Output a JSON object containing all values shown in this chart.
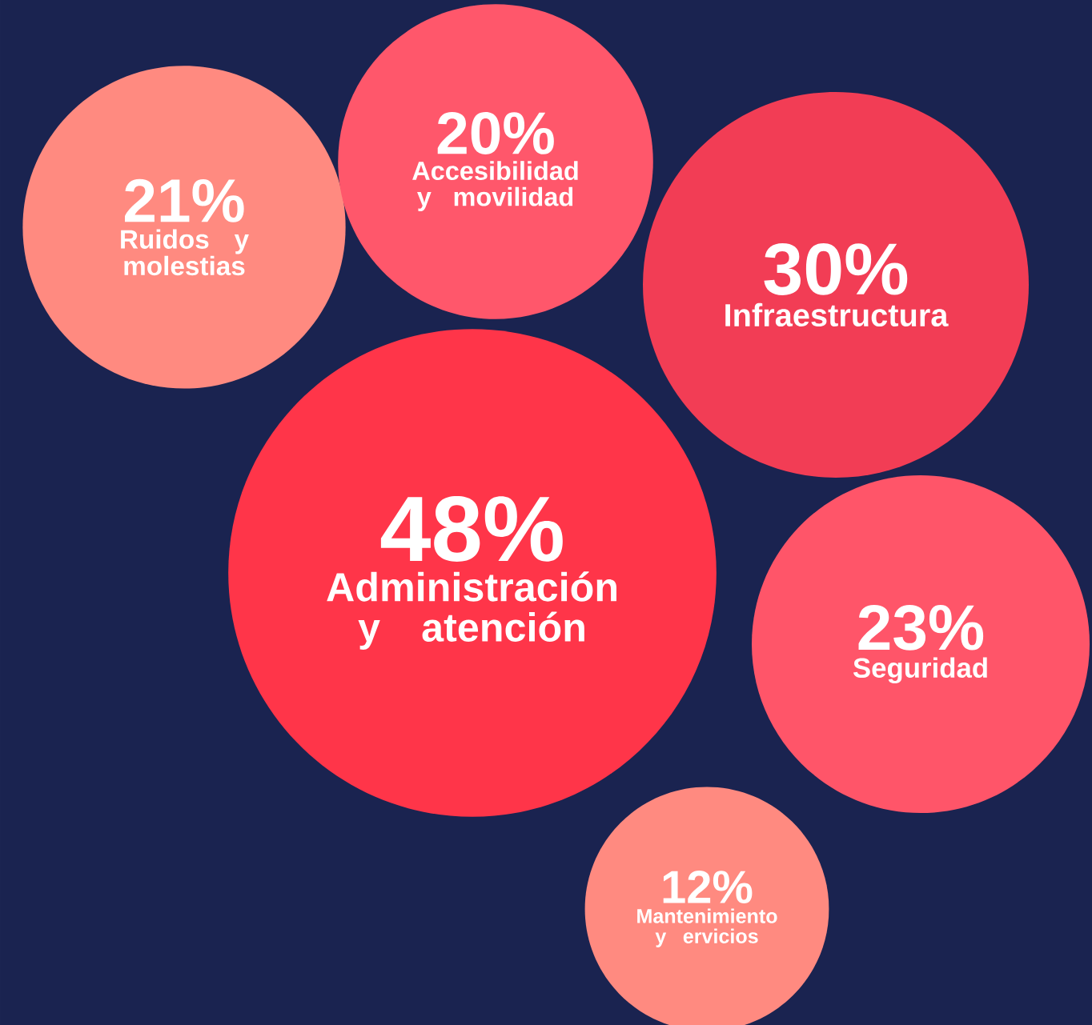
{
  "chart_data": {
    "type": "other",
    "categories": [
      "Ruidos y molestias",
      "Accesibilidad y movilidad",
      "Infraestructura",
      "Administración y atención",
      "Seguridad",
      "Mantenimiento y ervicios"
    ],
    "values": [
      21,
      20,
      30,
      48,
      23,
      12
    ],
    "value_labels": [
      "21%",
      "20%",
      "30%",
      "48%",
      "23%",
      "12%"
    ],
    "colors": [
      "#ff8a80",
      "#ff576b",
      "#f23d55",
      "#ff3549",
      "#ff5569",
      "#ff8a80"
    ]
  }
}
